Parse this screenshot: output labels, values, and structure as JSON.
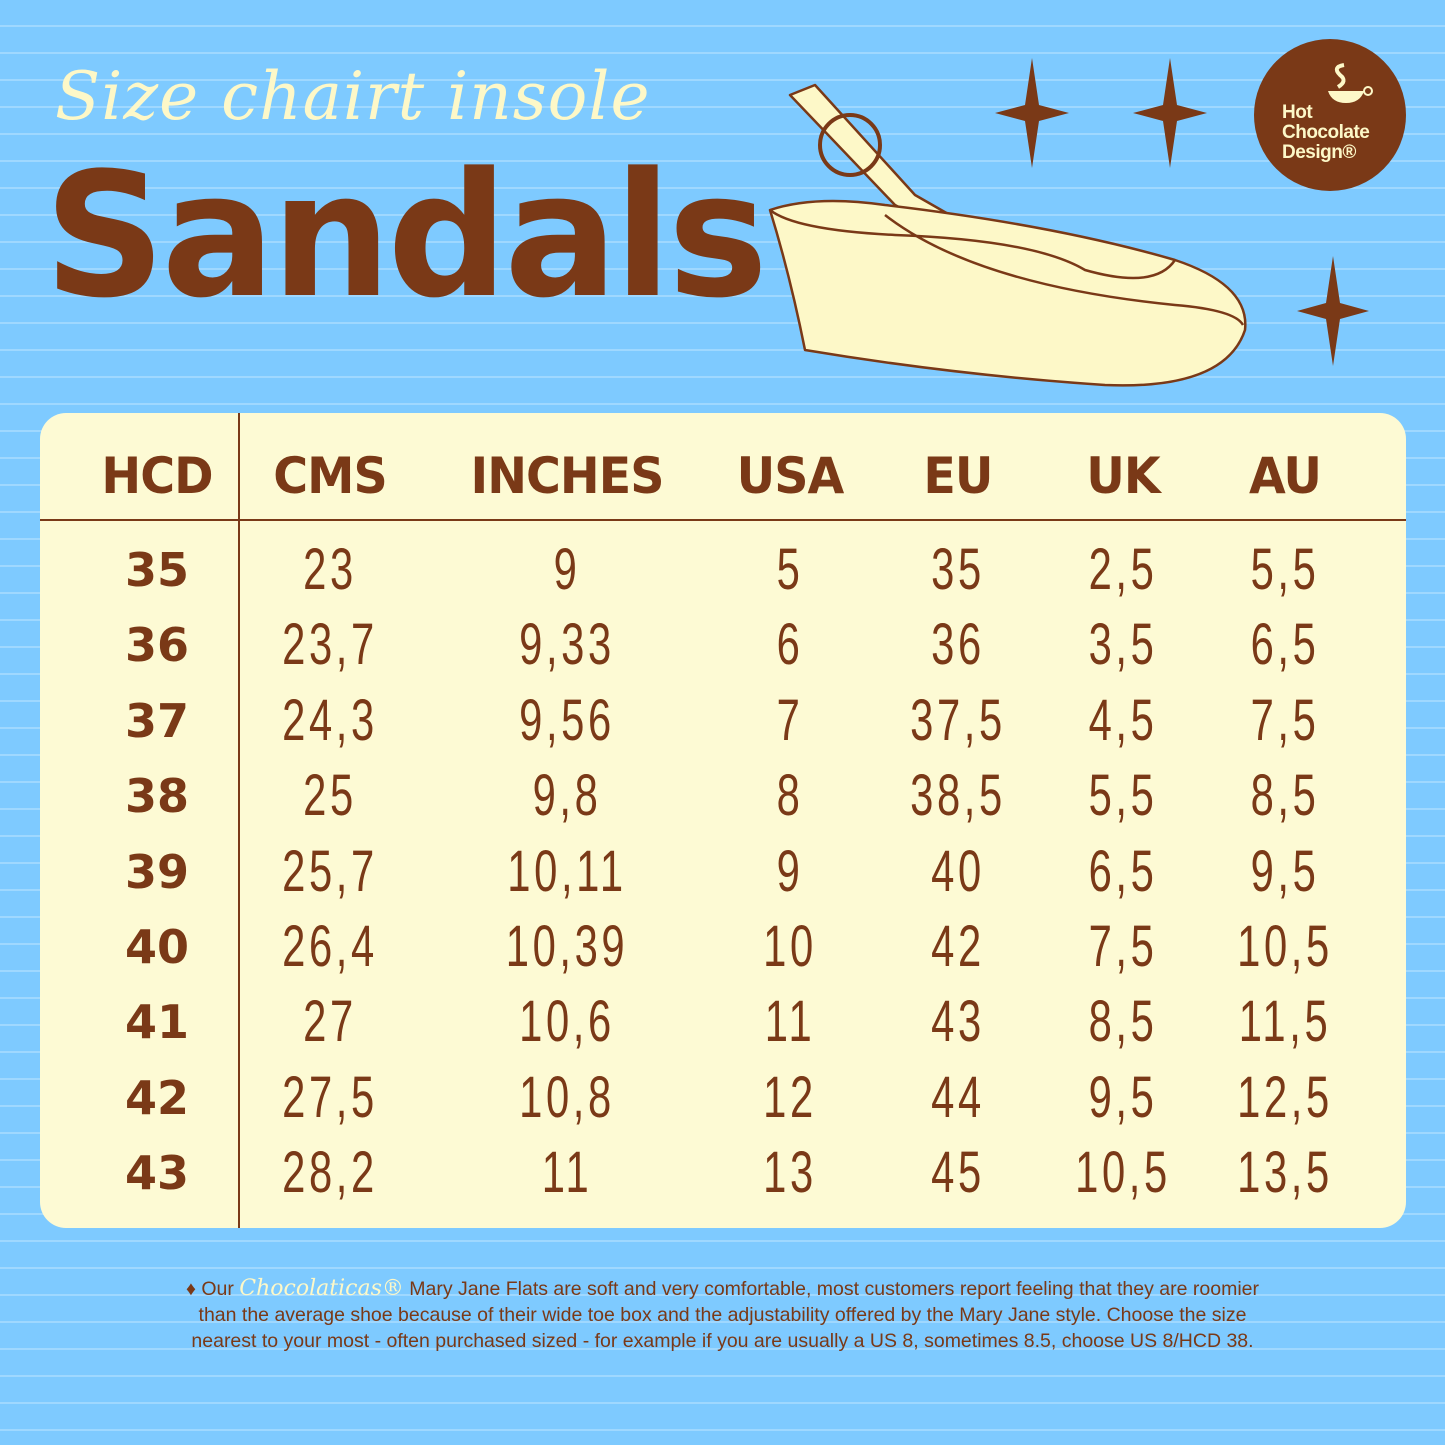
{
  "header": {
    "subtitle": "Size chairt insole",
    "title": "Sandals"
  },
  "logo": {
    "line1": "Hot",
    "line2": "Chocolate",
    "line3": "Design®"
  },
  "table": {
    "columns": [
      "HCD",
      "CMS",
      "INCHES",
      "USA",
      "EU",
      "UK",
      "AU"
    ],
    "rows": [
      [
        "35",
        "23",
        "9",
        "5",
        "35",
        "2,5",
        "5,5"
      ],
      [
        "36",
        "23,7",
        "9,33",
        "6",
        "36",
        "3,5",
        "6,5"
      ],
      [
        "37",
        "24,3",
        "9,56",
        "7",
        "37,5",
        "4,5",
        "7,5"
      ],
      [
        "38",
        "25",
        "9,8",
        "8",
        "38,5",
        "5,5",
        "8,5"
      ],
      [
        "39",
        "25,7",
        "10,11",
        "9",
        "40",
        "6,5",
        "9,5"
      ],
      [
        "40",
        "26,4",
        "10,39",
        "10",
        "42",
        "7,5",
        "10,5"
      ],
      [
        "41",
        "27",
        "10,6",
        "11",
        "43",
        "8,5",
        "11,5"
      ],
      [
        "42",
        "27,5",
        "10,8",
        "12",
        "44",
        "9,5",
        "12,5"
      ],
      [
        "43",
        "28,2",
        "11",
        "13",
        "45",
        "10,5",
        "13,5"
      ]
    ]
  },
  "note": {
    "bullet": "♦",
    "prefix": "Our",
    "brand": "Chocolaticas®",
    "text": "Mary Jane Flats are soft and very comfortable, most customers report feeling that they are roomier than the average shoe because of their wide toe box and the adjustability offered by the Mary Jane style. Choose the size nearest to your most - often  purchased sized - for example if you are usually a US 8, sometimes 8.5, choose US 8/HCD 38."
  },
  "colors": {
    "background": "#7ecaff",
    "brown": "#7a3917",
    "cream": "#fdfad4"
  }
}
